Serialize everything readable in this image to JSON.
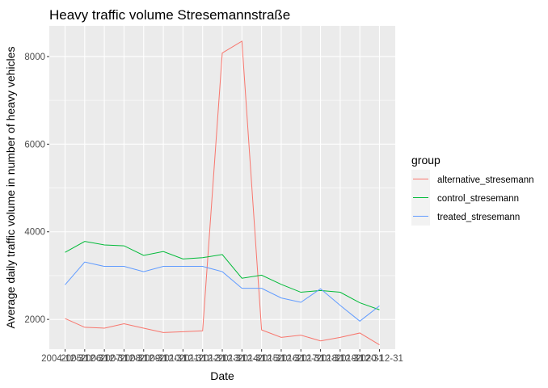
{
  "chart_data": {
    "type": "line",
    "title": "Heavy traffic volume Stresemannstraße",
    "xlabel": "Date",
    "ylabel": "Average daily traffic volume in number of heavy vehicles",
    "x": [
      "2004-12-31",
      "2005-12-31",
      "2006-12-31",
      "2007-12-31",
      "2008-12-31",
      "2009-12-31",
      "2010-12-31",
      "2011-12-31",
      "2012-12-31",
      "2013-12-31",
      "2014-12-31",
      "2015-12-31",
      "2016-12-31",
      "2017-12-31",
      "2018-12-31",
      "2019-12-31",
      "2020-12-31"
    ],
    "x_tick_labels": [
      "2004-12-31",
      "2005-12-31",
      "2006-12-31",
      "2007-12-31",
      "2008-12-31",
      "2009-12-31",
      "2010-12-31",
      "2011-12-31",
      "2012-12-31",
      "2013-12-31",
      "2014-12-31",
      "2015-12-31",
      "2016-12-31",
      "2017-12-31",
      "2018-12-31",
      "2019-12-31",
      "2020-12-31"
    ],
    "y_ticks": [
      2000,
      4000,
      6000,
      8000
    ],
    "y_tick_labels": [
      "2000",
      "4000",
      "6000",
      "8000"
    ],
    "ylim": [
      1320,
      8700
    ],
    "legend_title": "group",
    "legend_position": "right",
    "grid": true,
    "series": [
      {
        "name": "alternative_stresemann",
        "color": "#F8766D",
        "values": [
          2020,
          1820,
          1800,
          1900,
          1800,
          1700,
          1720,
          1740,
          8080,
          8350,
          1760,
          1590,
          1640,
          1510,
          1590,
          1690,
          1420
        ]
      },
      {
        "name": "control_stresemann",
        "color": "#00BA38",
        "values": [
          3530,
          3780,
          3700,
          3680,
          3460,
          3550,
          3380,
          3410,
          3480,
          2940,
          3010,
          2800,
          2620,
          2660,
          2620,
          2380,
          2220
        ]
      },
      {
        "name": "treated_stresemann",
        "color": "#619CFF",
        "values": [
          2790,
          3310,
          3210,
          3210,
          3090,
          3210,
          3210,
          3210,
          3090,
          2710,
          2710,
          2490,
          2390,
          2700,
          2320,
          1960,
          2310
        ]
      }
    ]
  }
}
